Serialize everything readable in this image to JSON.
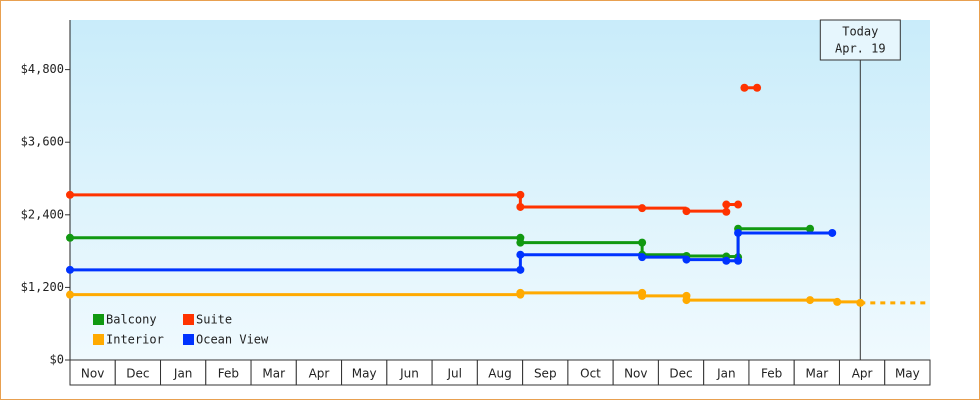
{
  "chart_data": {
    "type": "step-line",
    "categories": [
      "Nov",
      "Dec",
      "Jan",
      "Feb",
      "Mar",
      "Apr",
      "May",
      "Jun",
      "Jul",
      "Aug",
      "Sep",
      "Oct",
      "Nov",
      "Dec",
      "Jan",
      "Feb",
      "Mar",
      "Apr",
      "May"
    ],
    "xlim": [
      0,
      19
    ],
    "ylim": [
      0,
      5620
    ],
    "yticks": [
      {
        "value": 0,
        "label": "$0"
      },
      {
        "value": 1200,
        "label": "$1,200"
      },
      {
        "value": 2400,
        "label": "$2,400"
      },
      {
        "value": 3600,
        "label": "$3,600"
      },
      {
        "value": 4800,
        "label": "$4,800"
      }
    ],
    "series": [
      {
        "name": "Balcony",
        "color": "#119911",
        "x": [
          0,
          9.95,
          9.95,
          12.64,
          12.64,
          13.62,
          14.5,
          14.76,
          14.76,
          16.35
        ],
        "values": [
          2020,
          2020,
          1940,
          1940,
          1740,
          1720,
          1710,
          1700,
          2170,
          2170
        ]
      },
      {
        "name": "Suite",
        "color": "#ff3300",
        "x": [
          0,
          9.95,
          9.95,
          12.64,
          13.62,
          14.5,
          14.5,
          14.76,
          14.83,
          14.9,
          15.18
        ],
        "values": [
          2730,
          2730,
          2530,
          2510,
          2460,
          2450,
          2570,
          2570,
          null,
          4500,
          4500
        ]
      },
      {
        "name": "Interior",
        "color": "#ffaa00",
        "x": [
          0,
          9.95,
          9.95,
          12.64,
          12.64,
          13.62,
          13.62,
          16.35,
          16.95,
          17.46
        ],
        "values": [
          1080,
          1080,
          1110,
          1110,
          1060,
          1060,
          990,
          990,
          960,
          945
        ]
      },
      {
        "name": "Ocean View",
        "color": "#0033ff",
        "x": [
          0,
          9.95,
          9.95,
          12.64,
          13.62,
          14.5,
          14.76,
          14.76,
          16.84
        ],
        "values": [
          1490,
          1490,
          1740,
          1700,
          1660,
          1640,
          1640,
          2100,
          2100
        ]
      }
    ],
    "annotation": {
      "lines": [
        "Today",
        "Apr. 19"
      ],
      "x": 17.46
    }
  }
}
